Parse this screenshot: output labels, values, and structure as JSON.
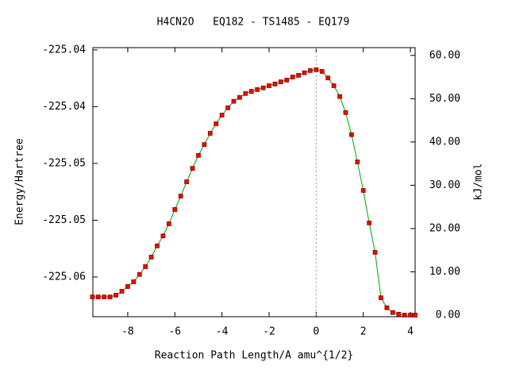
{
  "chart_data": {
    "type": "line",
    "title": "H4CN2O   EQ182 - TS1485 - EQ179",
    "xlabel": "Reaction Path Length/A amu^{1/2}",
    "ylabel": "Energy/Hartree",
    "y2label": "kJ/mol",
    "xlim": [
      -9.48,
      4.2
    ],
    "xticks": [
      -8,
      -6,
      -4,
      -2,
      0,
      2,
      4
    ],
    "ylim": [
      -225.061,
      -225.0373
    ],
    "yticks": [
      {
        "value": -225.0375,
        "label": "-225.04"
      },
      {
        "value": -225.0425,
        "label": "-225.04"
      },
      {
        "value": -225.0475,
        "label": "-225.05"
      },
      {
        "value": -225.0525,
        "label": "-225.05"
      },
      {
        "value": -225.0575,
        "label": "-225.06"
      }
    ],
    "y2lim": [
      -0.37,
      61.8
    ],
    "y2ticks": [
      {
        "value": 0,
        "label": "0.00"
      },
      {
        "value": 10,
        "label": "10.00"
      },
      {
        "value": 20,
        "label": "20.00"
      },
      {
        "value": 30,
        "label": "30.00"
      },
      {
        "value": 40,
        "label": "40.00"
      },
      {
        "value": 50,
        "label": "50.00"
      },
      {
        "value": 60,
        "label": "60.00"
      }
    ],
    "ts_line_x": 0,
    "line_color": "#00a000",
    "marker_color": "#e01000",
    "series": [
      {
        "axis": "y2",
        "x": [
          -9.5,
          -9.25,
          -9,
          -8.75,
          -8.5,
          -8.25,
          -8,
          -7.75,
          -7.5,
          -7.25,
          -7,
          -6.75,
          -6.5,
          -6.25,
          -6,
          -5.75,
          -5.5,
          -5.25,
          -5,
          -4.75,
          -4.5,
          -4.25,
          -4,
          -3.75,
          -3.5,
          -3.25,
          -3,
          -2.75,
          -2.5,
          -2.25,
          -2,
          -1.75,
          -1.5,
          -1.25,
          -1,
          -0.75,
          -0.5,
          -0.25,
          0,
          0.25,
          0.5,
          0.75,
          1,
          1.25,
          1.5,
          1.75,
          2,
          2.25,
          2.5,
          2.75,
          3,
          3.25,
          3.5,
          3.75,
          4,
          4.2
        ],
        "values": [
          4.2,
          4.2,
          4.2,
          4.2,
          4.6,
          5.5,
          6.6,
          7.7,
          9.4,
          11.2,
          13.4,
          16.0,
          18.3,
          21.1,
          24.4,
          27.5,
          30.8,
          33.9,
          36.9,
          39.4,
          42.0,
          44.2,
          46.2,
          47.9,
          49.4,
          50.3,
          51.2,
          51.7,
          52.1,
          52.5,
          53.0,
          53.4,
          53.9,
          54.3,
          55.0,
          55.4,
          56.0,
          56.5,
          56.7,
          56.3,
          54.8,
          53.0,
          50.5,
          46.8,
          41.7,
          35.4,
          28.8,
          21.3,
          14.5,
          4.0,
          1.7,
          0.6,
          0.2,
          0,
          0,
          0
        ]
      }
    ]
  }
}
